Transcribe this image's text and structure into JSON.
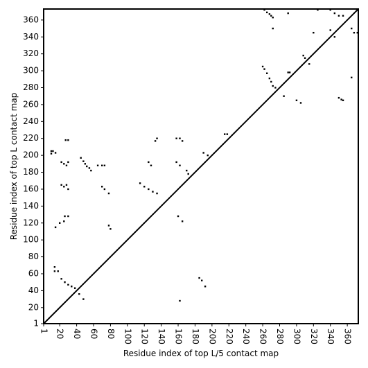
{
  "chart_data": {
    "type": "scatter",
    "x_label": "Residue index of top L/5 contact map",
    "y_label": "Residue index of top L contact map",
    "xlim": [
      1,
      373
    ],
    "ylim": [
      1,
      373
    ],
    "xticks": [
      1,
      20,
      40,
      60,
      80,
      100,
      120,
      140,
      160,
      180,
      200,
      220,
      240,
      260,
      280,
      300,
      320,
      340,
      360
    ],
    "yticks": [
      1,
      20,
      40,
      60,
      80,
      100,
      120,
      140,
      160,
      180,
      200,
      220,
      240,
      260,
      280,
      300,
      320,
      340,
      360
    ],
    "color": "#000000",
    "x": [
      10,
      10,
      12,
      15,
      27,
      30,
      22,
      25,
      28,
      30,
      45,
      48,
      50,
      52,
      55,
      57,
      65,
      70,
      73,
      22,
      25,
      28,
      30,
      70,
      73,
      78,
      26,
      30,
      25,
      20,
      15,
      78,
      80,
      14,
      14,
      18,
      22,
      26,
      30,
      34,
      38,
      43,
      48,
      115,
      120,
      125,
      130,
      135,
      125,
      128,
      133,
      135,
      158,
      162,
      165,
      158,
      162,
      170,
      172,
      190,
      195,
      215,
      218,
      260,
      262,
      265,
      268,
      270,
      272,
      275,
      262,
      265,
      268,
      270,
      272,
      272,
      290,
      290,
      308,
      310,
      325,
      340,
      345,
      350,
      355,
      340,
      345,
      320,
      315,
      160,
      165,
      185,
      188,
      192,
      162,
      285,
      292,
      300,
      305,
      350,
      353,
      355,
      365,
      368,
      372,
      365
    ],
    "values": [
      205,
      202,
      205,
      203,
      218,
      218,
      192,
      190,
      188,
      192,
      197,
      193,
      190,
      187,
      185,
      182,
      188,
      188,
      188,
      165,
      163,
      165,
      160,
      163,
      160,
      155,
      128,
      128,
      122,
      120,
      115,
      117,
      113,
      68,
      63,
      63,
      54,
      50,
      47,
      45,
      43,
      36,
      30,
      167,
      163,
      160,
      157,
      155,
      192,
      188,
      217,
      220,
      220,
      220,
      217,
      192,
      188,
      182,
      178,
      203,
      200,
      225,
      225,
      305,
      302,
      297,
      291,
      287,
      282,
      280,
      372,
      369,
      367,
      365,
      363,
      350,
      368,
      298,
      318,
      315,
      372,
      372,
      368,
      365,
      365,
      348,
      340,
      345,
      308,
      128,
      122,
      55,
      52,
      45,
      28,
      270,
      298,
      265,
      262,
      268,
      266,
      265,
      350,
      345,
      345,
      292
    ]
  }
}
